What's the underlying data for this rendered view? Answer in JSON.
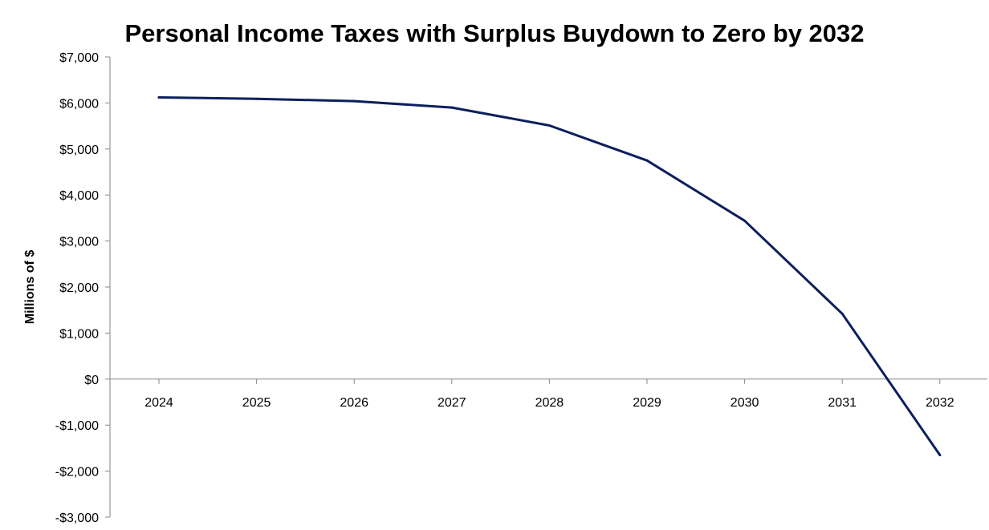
{
  "chart_data": {
    "type": "line",
    "title": "Personal Income Taxes with Surplus Buydown to Zero by 2032",
    "xlabel": "",
    "ylabel": "Millions of $",
    "categories": [
      "2024",
      "2025",
      "2026",
      "2027",
      "2028",
      "2029",
      "2030",
      "2031",
      "2032"
    ],
    "series": [
      {
        "values": [
          6120,
          6090,
          6040,
          5900,
          5510,
          4750,
          3440,
          1420,
          -1650
        ],
        "color": "#0d1f5c"
      }
    ],
    "ylim": [
      -3000,
      7000
    ],
    "yticks": [
      7000,
      6000,
      5000,
      4000,
      3000,
      2000,
      1000,
      0,
      -1000,
      -2000,
      -3000
    ],
    "ytick_labels": [
      "$7,000",
      "$6,000",
      "$5,000",
      "$4,000",
      "$3,000",
      "$2,000",
      "$1,000",
      "$0",
      "-$1,000",
      "-$2,000",
      "-$3,000"
    ],
    "grid": false,
    "legend": "none"
  }
}
